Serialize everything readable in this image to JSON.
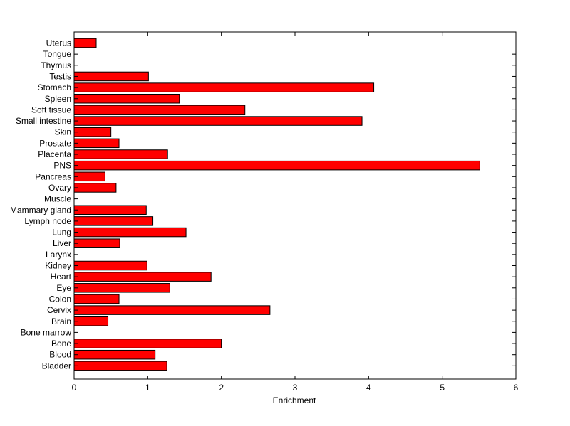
{
  "chart_data": {
    "type": "bar",
    "orientation": "horizontal",
    "title": "",
    "xlabel": "Enrichment",
    "ylabel": "",
    "xlim": [
      0,
      6
    ],
    "xticks": [
      0,
      1,
      2,
      3,
      4,
      5,
      6
    ],
    "grid": false,
    "bar_color": "#ff0000",
    "edge_color": "#000000",
    "categories": [
      "Uterus",
      "Tongue",
      "Thymus",
      "Testis",
      "Stomach",
      "Spleen",
      "Soft tissue",
      "Small intestine",
      "Skin",
      "Prostate",
      "Placenta",
      "PNS",
      "Pancreas",
      "Ovary",
      "Muscle",
      "Mammary gland",
      "Lymph node",
      "Lung",
      "Liver",
      "Larynx",
      "Kidney",
      "Heart",
      "Eye",
      "Colon",
      "Cervix",
      "Brain",
      "Bone marrow",
      "Bone",
      "Blood",
      "Bladder"
    ],
    "values": [
      0.3,
      0,
      0,
      1.01,
      4.07,
      1.43,
      2.32,
      3.91,
      0.5,
      0.61,
      1.27,
      5.51,
      0.42,
      0.57,
      0,
      0.98,
      1.07,
      1.52,
      0.62,
      0,
      0.99,
      1.86,
      1.3,
      0.61,
      2.66,
      0.46,
      0,
      2.0,
      1.1,
      1.26
    ]
  }
}
